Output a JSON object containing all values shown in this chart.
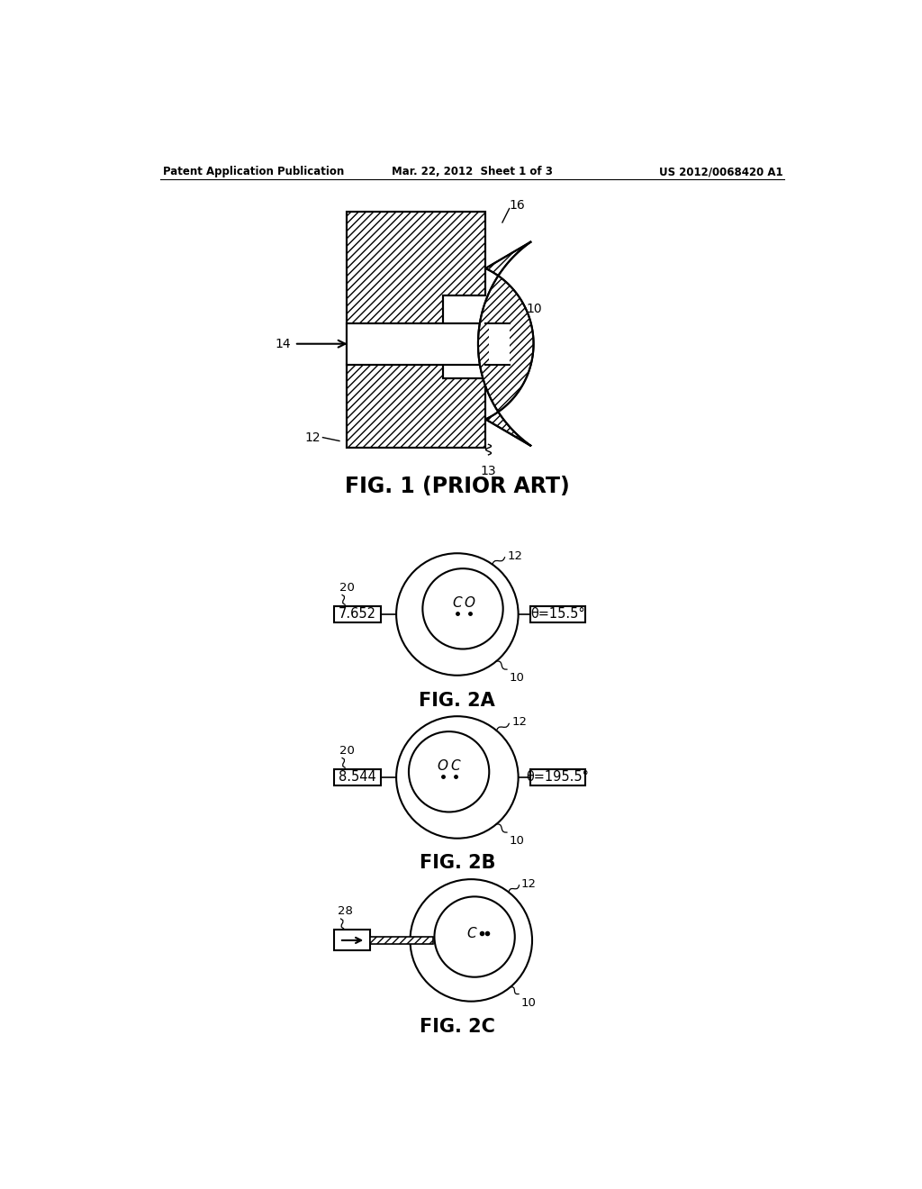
{
  "header_left": "Patent Application Publication",
  "header_mid": "Mar. 22, 2012  Sheet 1 of 3",
  "header_right": "US 2012/0068420 A1",
  "fig1_caption": "FIG. 1 (PRIOR ART)",
  "fig2a_caption": "FIG. 2A",
  "fig2b_caption": "FIG. 2B",
  "fig2c_caption": "FIG. 2C",
  "fig2a_left_val": "7.652",
  "fig2b_left_val": "8.544",
  "fig2a_right_val": "θ=15.5°",
  "fig2b_right_val": "θ=195.5°",
  "label_10": "10",
  "label_12": "12",
  "label_13": "13",
  "label_14": "14",
  "label_16": "16",
  "label_20": "20",
  "label_28": "28",
  "bg_color": "#ffffff",
  "line_color": "#000000"
}
